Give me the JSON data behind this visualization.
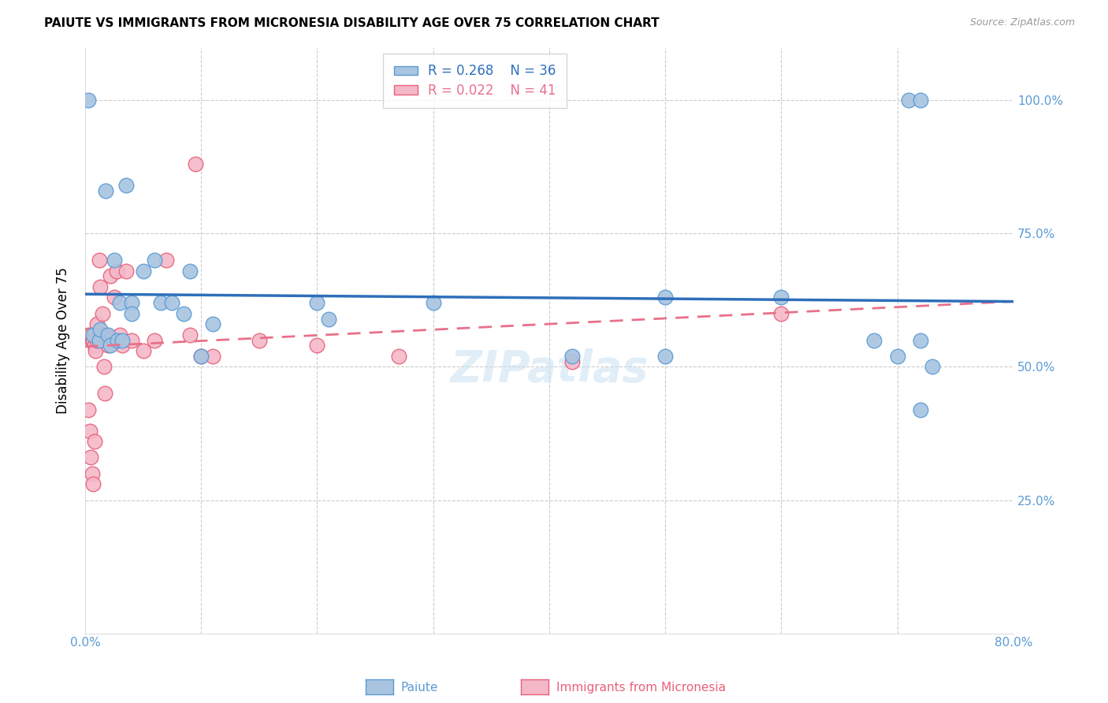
{
  "title": "PAIUTE VS IMMIGRANTS FROM MICRONESIA DISABILITY AGE OVER 75 CORRELATION CHART",
  "source": "Source: ZipAtlas.com",
  "ylabel": "Disability Age Over 75",
  "xlabel_label_paiute": "Paiute",
  "xlabel_label_micronesia": "Immigrants from Micronesia",
  "xmin": 0.0,
  "xmax": 0.8,
  "ymin": 0.0,
  "ymax": 1.1,
  "paiute_color": "#a8c4e0",
  "paiute_edge_color": "#5b9bd5",
  "micronesia_color": "#f4b8c8",
  "micronesia_edge_color": "#e8607a",
  "trendline_paiute_color": "#2e6fbb",
  "trendline_micronesia_color": "#e8708a",
  "legend_paiute_R": "R = 0.268",
  "legend_paiute_N": "N = 36",
  "legend_micronesia_R": "R = 0.022",
  "legend_micronesia_N": "N = 41",
  "watermark": "ZIPatlas",
  "paiute_x": [
    0.003,
    0.007,
    0.012,
    0.013,
    0.018,
    0.02,
    0.022,
    0.025,
    0.028,
    0.03,
    0.032,
    0.035,
    0.04,
    0.04,
    0.05,
    0.06,
    0.065,
    0.075,
    0.085,
    0.09,
    0.1,
    0.11,
    0.2,
    0.21,
    0.3,
    0.42,
    0.5,
    0.5,
    0.6,
    0.68,
    0.7,
    0.72,
    0.72,
    0.71,
    0.72,
    0.73
  ],
  "paiute_y": [
    1.0,
    0.56,
    0.55,
    0.57,
    0.83,
    0.56,
    0.54,
    0.7,
    0.55,
    0.62,
    0.55,
    0.84,
    0.62,
    0.6,
    0.68,
    0.7,
    0.62,
    0.62,
    0.6,
    0.68,
    0.52,
    0.58,
    0.62,
    0.59,
    0.62,
    0.52,
    0.63,
    0.52,
    0.63,
    0.55,
    0.52,
    0.42,
    0.55,
    1.0,
    1.0,
    0.5
  ],
  "micronesia_x": [
    0.003,
    0.005,
    0.006,
    0.007,
    0.008,
    0.009,
    0.01,
    0.01,
    0.012,
    0.013,
    0.015,
    0.015,
    0.016,
    0.017,
    0.018,
    0.02,
    0.022,
    0.025,
    0.027,
    0.03,
    0.032,
    0.035,
    0.04,
    0.05,
    0.06,
    0.07,
    0.09,
    0.095,
    0.1,
    0.11,
    0.15,
    0.2,
    0.27,
    0.42,
    0.6,
    0.003,
    0.004,
    0.005,
    0.006,
    0.007,
    0.008
  ],
  "micronesia_y": [
    0.56,
    0.56,
    0.55,
    0.55,
    0.54,
    0.53,
    0.58,
    0.55,
    0.7,
    0.65,
    0.6,
    0.56,
    0.5,
    0.45,
    0.56,
    0.54,
    0.67,
    0.63,
    0.68,
    0.56,
    0.54,
    0.68,
    0.55,
    0.53,
    0.55,
    0.7,
    0.56,
    0.88,
    0.52,
    0.52,
    0.55,
    0.54,
    0.52,
    0.51,
    0.6,
    0.42,
    0.38,
    0.33,
    0.3,
    0.28,
    0.36
  ]
}
